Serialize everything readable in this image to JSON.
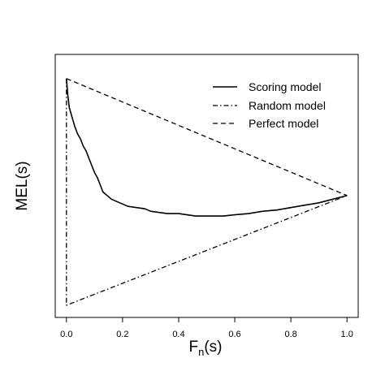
{
  "chart_data": {
    "type": "line",
    "title": "",
    "xlabel": "F",
    "xlabel_subscript": "n",
    "xlabel_suffix": "(s)",
    "ylabel": "MEL(s)",
    "xlim": [
      -0.04,
      1.04
    ],
    "ylim": [
      0,
      1
    ],
    "x_ticks": [
      0.0,
      0.2,
      0.4,
      0.6,
      0.8,
      1.0
    ],
    "x_tick_labels": [
      "0.0",
      "0.2",
      "0.4",
      "0.6",
      "0.8",
      "1.0"
    ],
    "y_ticks_shown": false,
    "grid": false,
    "legend_position": "top-right",
    "series": [
      {
        "name": "Scoring model",
        "line_style": "solid",
        "x": [
          0.0,
          0.005,
          0.01,
          0.02,
          0.03,
          0.04,
          0.05,
          0.06,
          0.07,
          0.08,
          0.09,
          0.1,
          0.11,
          0.12,
          0.13,
          0.14,
          0.15,
          0.16,
          0.18,
          0.2,
          0.22,
          0.25,
          0.28,
          0.3,
          0.33,
          0.36,
          0.4,
          0.43,
          0.46,
          0.5,
          0.53,
          0.56,
          0.6,
          0.65,
          0.7,
          0.75,
          0.8,
          0.85,
          0.9,
          0.95,
          1.0
        ],
        "y": [
          0.94,
          0.87,
          0.82,
          0.78,
          0.74,
          0.71,
          0.69,
          0.66,
          0.64,
          0.61,
          0.58,
          0.55,
          0.53,
          0.5,
          0.47,
          0.46,
          0.45,
          0.44,
          0.43,
          0.42,
          0.41,
          0.405,
          0.4,
          0.39,
          0.385,
          0.38,
          0.38,
          0.375,
          0.37,
          0.37,
          0.37,
          0.37,
          0.375,
          0.38,
          0.39,
          0.395,
          0.405,
          0.415,
          0.425,
          0.44,
          0.455
        ]
      },
      {
        "name": "Random model",
        "line_style": "dashdot",
        "x": [
          0.0,
          0.0,
          1.0
        ],
        "y": [
          0.94,
          0.0,
          0.455
        ]
      },
      {
        "name": "Perfect model",
        "line_style": "dashed",
        "x": [
          0.0,
          1.0
        ],
        "y": [
          0.94,
          0.455
        ]
      }
    ]
  }
}
